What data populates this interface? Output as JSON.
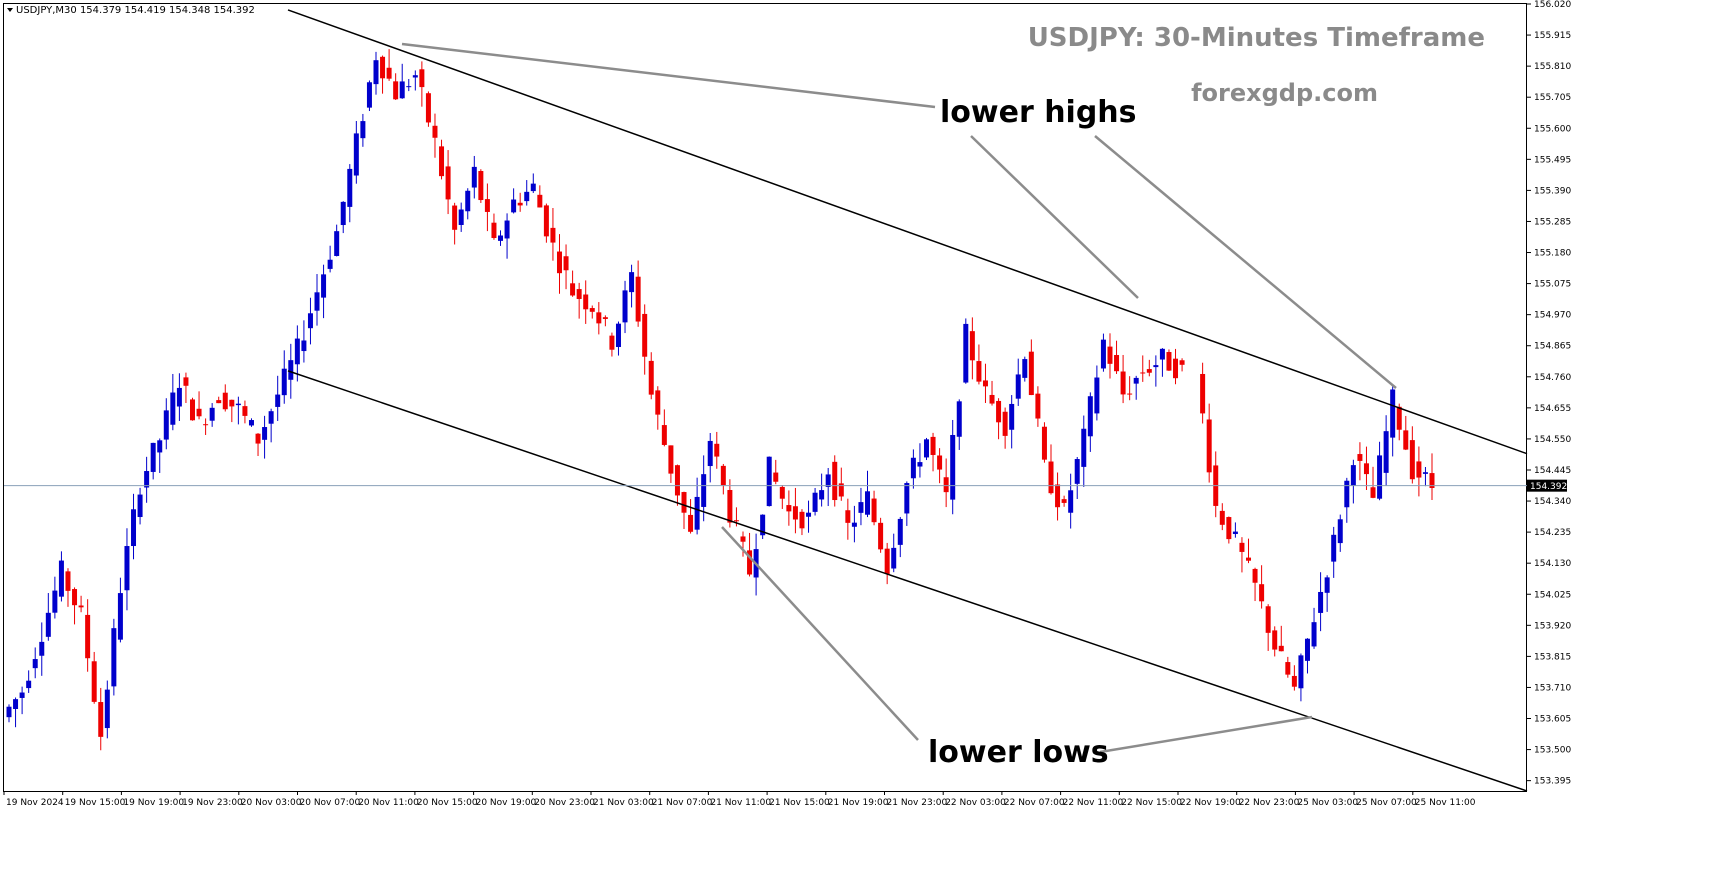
{
  "chart_data": {
    "type": "candlestick",
    "symbol_info": "USDJPY,M30  154.379 154.419 154.348 154.392",
    "title": "USDJPY: 30-Minutes Timeframe",
    "website": "forexgdp.com",
    "annotations": {
      "upper": "lower highs",
      "lower": "lower lows"
    },
    "current_price": "154.392",
    "ylim": [
      153.36,
      156.02
    ],
    "y_ticks": [
      "156.020",
      "155.915",
      "155.810",
      "155.705",
      "155.600",
      "155.495",
      "155.390",
      "155.285",
      "155.180",
      "155.075",
      "154.970",
      "154.865",
      "154.760",
      "154.655",
      "154.550",
      "154.445",
      "154.340",
      "154.235",
      "154.130",
      "154.025",
      "153.920",
      "153.815",
      "153.710",
      "153.605",
      "153.500",
      "153.395"
    ],
    "x_ticks": [
      "19 Nov 2024",
      "19 Nov 15:00",
      "19 Nov 19:00",
      "19 Nov 23:00",
      "20 Nov 03:00",
      "20 Nov 07:00",
      "20 Nov 11:00",
      "20 Nov 15:00",
      "20 Nov 19:00",
      "20 Nov 23:00",
      "21 Nov 03:00",
      "21 Nov 07:00",
      "21 Nov 11:00",
      "21 Nov 15:00",
      "21 Nov 19:00",
      "21 Nov 23:00",
      "22 Nov 03:00",
      "22 Nov 07:00",
      "22 Nov 11:00",
      "22 Nov 15:00",
      "22 Nov 19:00",
      "22 Nov 23:00",
      "25 Nov 03:00",
      "25 Nov 07:00",
      "25 Nov 11:00"
    ],
    "colors": {
      "bull": "#0000cc",
      "bear": "#ee0000",
      "trendline": "#000000",
      "pointer": "#8c8c8c",
      "price_line": "#8aa0b8"
    },
    "close_path": [
      153.61,
      153.7,
      153.9,
      154.1,
      153.95,
      153.55,
      154.05,
      154.4,
      154.55,
      154.75,
      154.6,
      154.7,
      154.65,
      154.55,
      154.7,
      154.85,
      155.05,
      155.25,
      155.55,
      155.85,
      155.72,
      155.78,
      155.55,
      155.25,
      155.45,
      155.2,
      155.35,
      155.4,
      155.2,
      155.05,
      155.0,
      154.88,
      155.1,
      154.7,
      154.45,
      154.22,
      154.55,
      154.3,
      154.1,
      154.45,
      154.3,
      154.28,
      154.45,
      154.25,
      154.35,
      154.12,
      154.4,
      154.55,
      154.35,
      154.9,
      154.7,
      154.6,
      154.85,
      154.45,
      154.3,
      154.55,
      154.88,
      154.7,
      154.78,
      154.82,
      154.78,
      154.32,
      154.2,
      154.05,
      153.85,
      153.7,
      153.95,
      154.2,
      154.5,
      154.35,
      154.68,
      154.45,
      154.39
    ]
  }
}
